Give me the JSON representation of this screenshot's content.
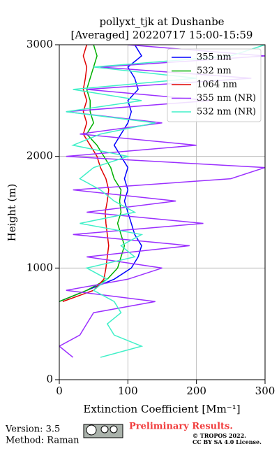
{
  "chart_data": {
    "type": "line",
    "title": "pollyxt_tjk at Dushanbe",
    "subtitle": "[Averaged] 20220717 15:00-15:59",
    "xlabel": "Extinction Coefficient [Mm⁻¹]",
    "ylabel": "Height (m)",
    "xlim": [
      0,
      300
    ],
    "xticks": [
      0,
      100,
      200,
      300
    ],
    "ylim": [
      0,
      3000
    ],
    "yticks": [
      0,
      1000,
      2000,
      3000
    ],
    "grid": true,
    "legend": "upper right",
    "y": [
      200,
      300,
      400,
      500,
      600,
      700,
      800,
      900,
      1000,
      1100,
      1200,
      1300,
      1400,
      1500,
      1600,
      1700,
      1800,
      1900,
      2000,
      2100,
      2200,
      2300,
      2400,
      2500,
      2600,
      2700,
      2800,
      2900,
      3000
    ],
    "series": [
      {
        "name": "355 nm",
        "color": "#0000ff",
        "values": [
          null,
          null,
          null,
          null,
          null,
          0,
          40,
          80,
          105,
          115,
          120,
          110,
          105,
          100,
          95,
          100,
          95,
          100,
          90,
          80,
          90,
          100,
          105,
          100,
          115,
          110,
          100,
          120,
          110
        ]
      },
      {
        "name": "532 nm",
        "color": "#00b000",
        "values": [
          null,
          null,
          null,
          null,
          null,
          0,
          40,
          70,
          85,
          90,
          95,
          90,
          85,
          90,
          88,
          90,
          80,
          75,
          65,
          55,
          40,
          50,
          45,
          45,
          40,
          45,
          50,
          55,
          50
        ]
      },
      {
        "name": "1064 nm",
        "color": "#e00000",
        "values": [
          null,
          null,
          null,
          null,
          null,
          5,
          50,
          65,
          68,
          70,
          72,
          70,
          68,
          67,
          70,
          72,
          68,
          60,
          55,
          45,
          35,
          40,
          35,
          40,
          35,
          38,
          40,
          35,
          40
        ]
      },
      {
        "name": "355 nm (NR)",
        "color": "#9b30ff",
        "values": [
          20,
          0,
          30,
          40,
          50,
          140,
          10,
          100,
          150,
          40,
          190,
          20,
          210,
          40,
          170,
          20,
          250,
          300,
          10,
          200,
          30,
          150,
          10,
          220,
          40,
          280,
          60,
          300,
          100
        ]
      },
      {
        "name": "532 nm (NR)",
        "color": "#40f0c8",
        "values": [
          60,
          120,
          80,
          70,
          90,
          80,
          50,
          70,
          40,
          110,
          90,
          120,
          30,
          110,
          80,
          60,
          30,
          50,
          100,
          20,
          60,
          140,
          10,
          120,
          20,
          200,
          50,
          250,
          300
        ]
      }
    ]
  },
  "footer": {
    "version": "Version: 3.5",
    "method": "Method: Raman",
    "status": "Preliminary Results.",
    "copyright": "© TROPOS 2022.",
    "license": "CC BY SA 4.0 License."
  }
}
